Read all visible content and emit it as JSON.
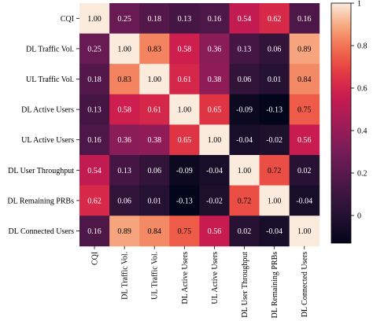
{
  "chart_data": {
    "type": "heatmap",
    "labels": [
      "CQI",
      "DL Traffic Vol.",
      "UL Traffic Vol.",
      "DL Active Users",
      "UL Active Users",
      "DL User Throughput",
      "DL Remaining PRBs",
      "DL Connected Users"
    ],
    "values": [
      [
        1.0,
        0.25,
        0.18,
        0.13,
        0.16,
        0.54,
        0.62,
        0.16
      ],
      [
        0.25,
        1.0,
        0.83,
        0.58,
        0.36,
        0.13,
        0.06,
        0.89
      ],
      [
        0.18,
        0.83,
        1.0,
        0.61,
        0.38,
        0.06,
        0.01,
        0.84
      ],
      [
        0.13,
        0.58,
        0.61,
        1.0,
        0.65,
        -0.09,
        -0.13,
        0.75
      ],
      [
        0.16,
        0.36,
        0.38,
        0.65,
        1.0,
        -0.04,
        -0.02,
        0.56
      ],
      [
        0.54,
        0.13,
        0.06,
        -0.09,
        -0.04,
        1.0,
        0.72,
        0.02
      ],
      [
        0.62,
        0.06,
        0.01,
        -0.13,
        -0.02,
        0.72,
        1.0,
        -0.04
      ],
      [
        0.16,
        0.89,
        0.84,
        0.75,
        0.56,
        0.02,
        -0.04,
        1.0
      ]
    ],
    "value_range": [
      -0.13,
      1.0
    ],
    "colormap": "rocket",
    "colorbar_ticks": [
      "1",
      "0.8",
      "0.6",
      "0.4",
      "0.2",
      "0"
    ],
    "colorbar_tick_values": [
      1,
      0.8,
      0.6,
      0.4,
      0.2,
      0
    ],
    "legend_position": "right"
  }
}
